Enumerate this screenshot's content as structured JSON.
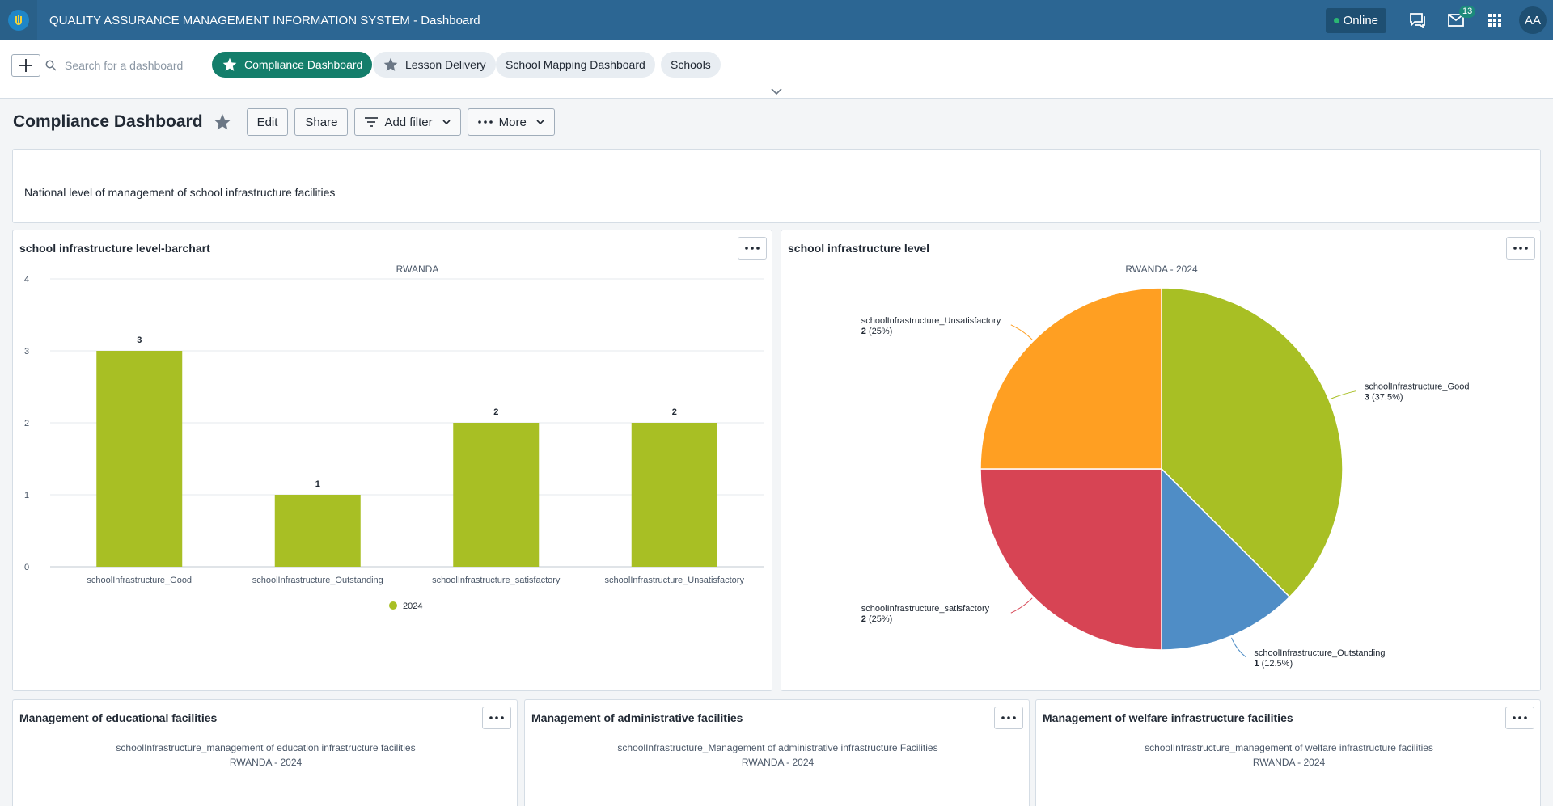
{
  "header": {
    "app_title": "QUALITY ASSURANCE MANAGEMENT INFORMATION SYSTEM - Dashboard",
    "status": "Online",
    "notification_count": "13",
    "user_initials": "AA",
    "icons": [
      "chat-icon",
      "mail-icon",
      "apps-grid-icon"
    ]
  },
  "dash_bar": {
    "search_placeholder": "Search for a dashboard",
    "dashboards": [
      {
        "label": "Compliance Dashboard",
        "active": true,
        "starred": true
      },
      {
        "label": "Lesson Delivery",
        "active": false,
        "starred": true
      },
      {
        "label": "School Mapping Dashboard",
        "active": false,
        "starred": false
      },
      {
        "label": "Schools",
        "active": false,
        "starred": false
      }
    ]
  },
  "title_bar": {
    "title": "Compliance Dashboard",
    "edit_label": "Edit",
    "share_label": "Share",
    "add_filter_label": "Add filter",
    "more_label": "More"
  },
  "text_item": {
    "text": "National level of management of school infrastructure facilities"
  },
  "panels": {
    "bar": {
      "title": "school infrastructure level-barchart"
    },
    "pie": {
      "title": "school infrastructure level"
    },
    "edu": {
      "title": "Management of educational facilities",
      "subtitle": "schoolInfrastructure_management of education infrastructure facilities",
      "subtitle2": "RWANDA - 2024"
    },
    "admin": {
      "title": "Management of administrative facilities",
      "subtitle": "schoolInfrastructure_Management of administrative infrastructure Facilities",
      "subtitle2": "RWANDA - 2024"
    },
    "welfare": {
      "title": "Management of welfare infrastructure facilities",
      "subtitle": "schoolInfrastructure_management of welfare infrastructure facilities",
      "subtitle2": "RWANDA - 2024"
    }
  },
  "chart_data": [
    {
      "type": "bar",
      "title": "RWANDA",
      "categories": [
        "schoolInfrastructure_Good",
        "schoolInfrastructure_Outstanding",
        "schoolInfrastructure_satisfactory",
        "schoolInfrastructure_Unsatisfactory"
      ],
      "series": [
        {
          "name": "2024",
          "values": [
            3,
            1,
            2,
            2
          ],
          "color": "#a8bf24"
        }
      ],
      "ylim": [
        0,
        4
      ],
      "yticks": [
        0,
        1,
        2,
        3,
        4
      ],
      "grid": true,
      "legend": "bottom-center"
    },
    {
      "type": "pie",
      "title": "RWANDA - 2024",
      "slices": [
        {
          "label": "schoolInfrastructure_Good",
          "value": 3,
          "percent": "37.5%",
          "color": "#a8bf24"
        },
        {
          "label": "schoolInfrastructure_Outstanding",
          "value": 1,
          "percent": "12.5%",
          "color": "#4f8dc6"
        },
        {
          "label": "schoolInfrastructure_satisfactory",
          "value": 2,
          "percent": "25%",
          "color": "#d74454"
        },
        {
          "label": "schoolInfrastructure_Unsatisfactory",
          "value": 2,
          "percent": "25%",
          "color": "#ff9f22"
        }
      ]
    }
  ]
}
